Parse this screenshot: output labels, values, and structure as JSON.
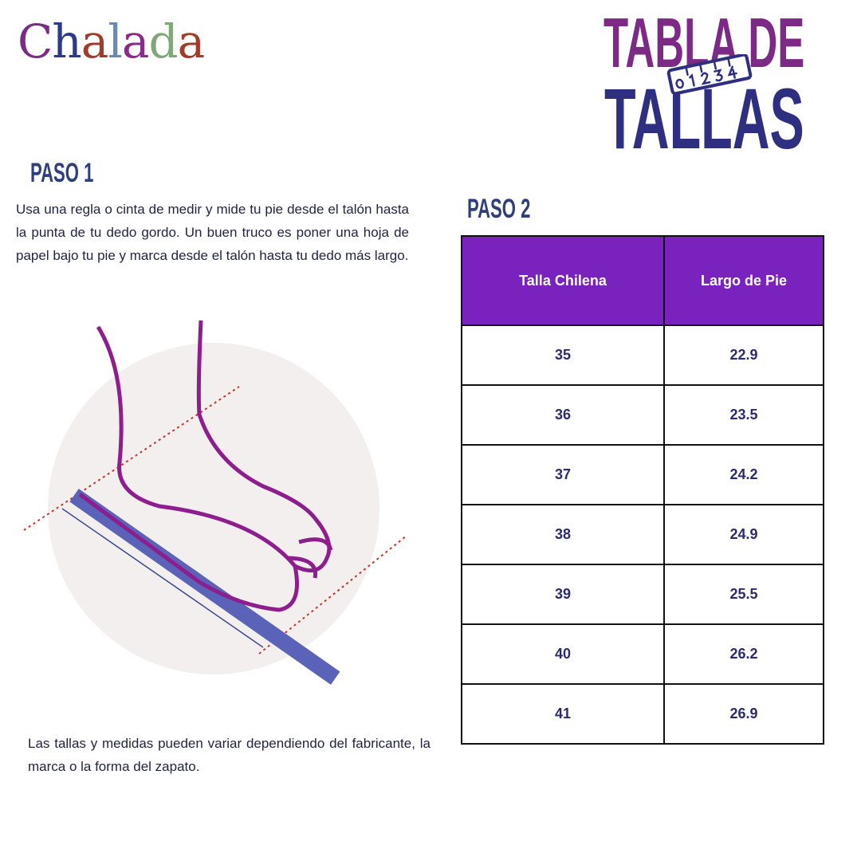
{
  "logo": {
    "text": "Chalada",
    "letters": [
      "C",
      "h",
      "a",
      "l",
      "a",
      "d",
      "a"
    ],
    "colors": [
      "#7b2a86",
      "#2d3a8a",
      "#a33a2a",
      "#6b8ab0",
      "#8a2a8a",
      "#7fa878",
      "#a33a2a"
    ]
  },
  "title": {
    "line1": "TABLA DE",
    "line2": "TALLAS",
    "ruler_digits": "01234"
  },
  "step1": {
    "heading": "PASO 1",
    "text": "Usa una regla o cinta de medir y mide tu pie desde el talón hasta la punta de tu dedo gordo. Un buen truco es poner una hoja de papel bajo tu pie y marca desde el talón hasta tu dedo más largo."
  },
  "step2": {
    "heading": "PASO 2"
  },
  "table": {
    "headers": [
      "Talla Chilena",
      "Largo de Pie"
    ],
    "rows": [
      [
        "35",
        "22.9"
      ],
      [
        "36",
        "23.5"
      ],
      [
        "37",
        "24.2"
      ],
      [
        "38",
        "24.9"
      ],
      [
        "39",
        "25.5"
      ],
      [
        "40",
        "26.2"
      ],
      [
        "41",
        "26.9"
      ]
    ]
  },
  "note": "Las tallas y medidas pueden variar dependiendo del fabricante, la marca o la forma del zapato.",
  "colors": {
    "purple": "#7d2a87",
    "navy": "#2f2f82",
    "table_header": "#7a22bd"
  }
}
